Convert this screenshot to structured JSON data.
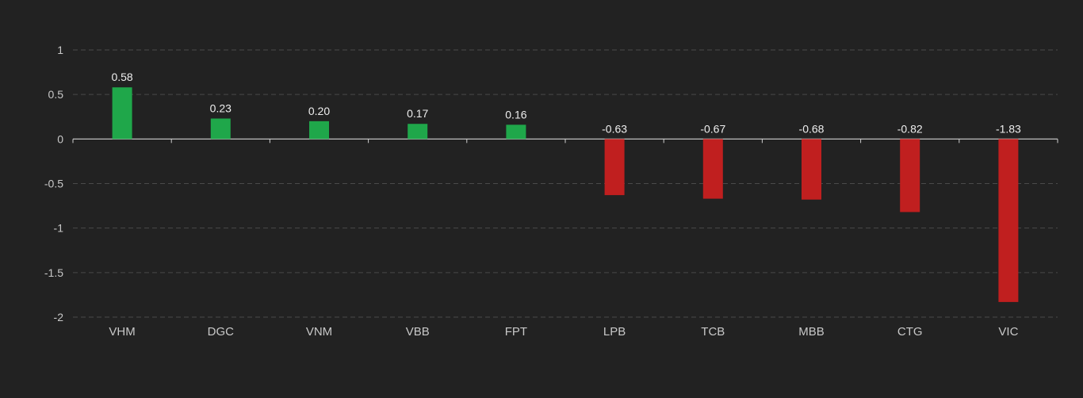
{
  "chart_data": {
    "type": "bar",
    "categories": [
      "VHM",
      "DGC",
      "VNM",
      "VBB",
      "FPT",
      "LPB",
      "TCB",
      "MBB",
      "CTG",
      "VIC"
    ],
    "values": [
      0.58,
      0.23,
      0.2,
      0.17,
      0.16,
      -0.63,
      -0.67,
      -0.68,
      -0.82,
      -1.83
    ],
    "value_labels": [
      "0.58",
      "0.23",
      "0.20",
      "0.17",
      "0.16",
      "-0.63",
      "-0.67",
      "-0.68",
      "-0.82",
      "-1.83"
    ],
    "ylim": [
      -2,
      1
    ],
    "yticks": [
      1,
      0.5,
      0,
      -0.5,
      -1,
      -1.5,
      -2
    ],
    "ytick_labels": [
      "1",
      "0.5",
      "0",
      "-0.5",
      "-1",
      "-1.5",
      "-2"
    ],
    "grid": true,
    "legend": "none",
    "colors": {
      "positive": "#1fa74a",
      "negative": "#c01f1f",
      "background": "#222222"
    }
  }
}
